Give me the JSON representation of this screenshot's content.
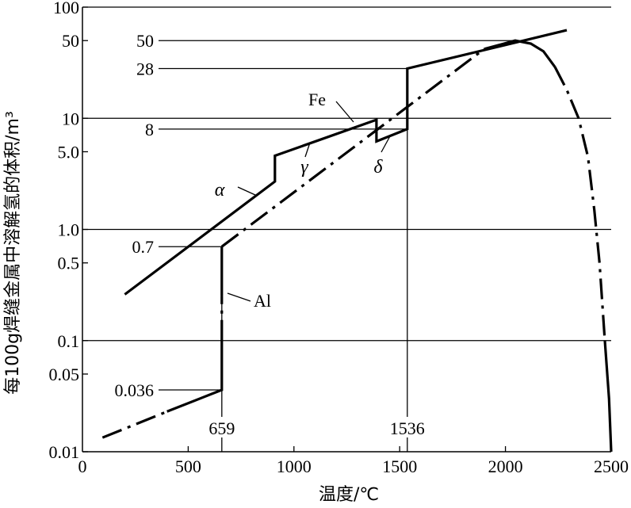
{
  "chart_data": {
    "type": "line",
    "title": "",
    "xlabel": "温度/℃",
    "ylabel": "每100g焊缝金属中溶解氢的体积/m³",
    "xlim": [
      0,
      2500
    ],
    "ylim": [
      0.01,
      100
    ],
    "yscale": "log",
    "x_ticks": [
      "0",
      "500",
      "1000",
      "1500",
      "2000",
      "2500"
    ],
    "x_tick_values": [
      0,
      500,
      1000,
      1500,
      2000,
      2500
    ],
    "y_ticks": [
      "0.01",
      "0.05",
      "0.1",
      "0.5",
      "1.0",
      "5.0",
      "10",
      "50",
      "100"
    ],
    "y_tick_values": [
      0.01,
      0.05,
      0.1,
      0.5,
      1,
      5,
      10,
      50,
      100
    ],
    "gridlines_y": [
      0.1,
      1,
      10,
      100
    ],
    "series": [
      {
        "name": "Fe",
        "segments": [
          {
            "style": "solid",
            "points": [
              [
                200,
                0.26
              ],
              [
                910,
                2.7
              ],
              [
                910,
                4.6
              ],
              [
                1390,
                9.7
              ],
              [
                1390,
                6.2
              ],
              [
                1536,
                8
              ],
              [
                1536,
                28
              ],
              [
                2290,
                62
              ]
            ]
          }
        ]
      },
      {
        "name": "Al",
        "segments": [
          {
            "style": "dashdot",
            "points": [
              [
                95,
                0.0134
              ],
              [
                400,
                0.023
              ]
            ]
          },
          {
            "style": "solid",
            "points": [
              [
                400,
                0.023
              ],
              [
                659,
                0.036
              ],
              [
                659,
                0.1
              ]
            ]
          },
          {
            "style": "dashdot",
            "points": [
              [
                659,
                0.1
              ],
              [
                659,
                0.25
              ]
            ]
          },
          {
            "style": "solid",
            "points": [
              [
                659,
                0.25
              ],
              [
                659,
                0.7
              ]
            ]
          },
          {
            "style": "dashdot",
            "points": [
              [
                659,
                0.7
              ],
              [
                1900,
                42
              ]
            ]
          },
          {
            "style": "solid",
            "points": [
              [
                1900,
                42
              ],
              [
                2046,
                50
              ],
              [
                2120,
                47
              ],
              [
                2180,
                40
              ],
              [
                2234,
                29
              ]
            ]
          },
          {
            "style": "dashdot",
            "points": [
              [
                2234,
                29
              ],
              [
                2290,
                18
              ],
              [
                2346,
                10
              ],
              [
                2390,
                4.5
              ],
              [
                2420,
                1.5
              ],
              [
                2445,
                0.5
              ],
              [
                2470,
                0.1
              ]
            ]
          },
          {
            "style": "solid",
            "points": [
              [
                2470,
                0.1
              ],
              [
                2490,
                0.03
              ],
              [
                2500,
                0.01
              ]
            ]
          }
        ]
      }
    ],
    "reference_lines": [
      {
        "label": "50",
        "value": 50,
        "to_x": 2046
      },
      {
        "label": "28",
        "value": 28,
        "to_x": 1536
      },
      {
        "label": "8",
        "value": 8,
        "to_x": 1536
      },
      {
        "label": "0.7",
        "value": 0.7,
        "to_x": 659
      },
      {
        "label": "0.036",
        "value": 0.036,
        "to_x": 659
      }
    ],
    "vertical_markers": [
      {
        "label": "659",
        "x": 659,
        "to_y": 0.7
      },
      {
        "label": "1536",
        "x": 1536,
        "to_y": 28
      }
    ],
    "annotations": {
      "fe": "Fe",
      "alpha": "α",
      "gamma": "γ",
      "delta": "δ",
      "al": "Al"
    }
  }
}
